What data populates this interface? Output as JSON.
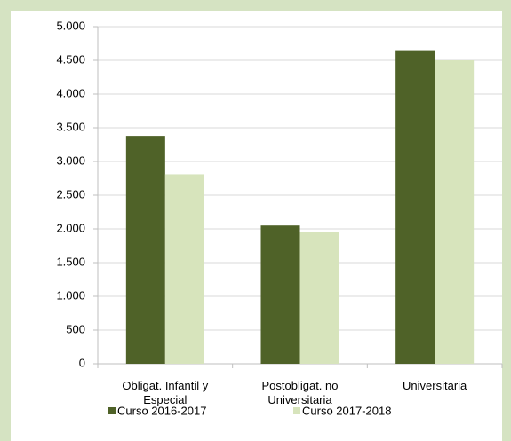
{
  "chart_data": {
    "type": "bar",
    "categories": [
      "Obligat. Infantil y Especial",
      "Postobligat. no Universitaria",
      "Universitaria"
    ],
    "series": [
      {
        "name": "Curso 2016-2017",
        "color": "#4f6228",
        "values": [
          3380,
          2050,
          4650
        ]
      },
      {
        "name": "Curso 2017-2018",
        "color": "#d7e4bc",
        "values": [
          2810,
          1950,
          4500
        ]
      }
    ],
    "ylim": [
      0,
      5000
    ],
    "yticks": [
      0,
      500,
      {
        "value": 1000,
        "label": "1.000"
      },
      {
        "value": 1500,
        "label": "1.500"
      },
      {
        "value": 2000,
        "label": "2.000"
      },
      {
        "value": 2500,
        "label": "2.500"
      },
      {
        "value": 3000,
        "label": "3.000"
      },
      {
        "value": 3500,
        "label": "3.500"
      },
      {
        "value": 4000,
        "label": "4.000"
      },
      {
        "value": 4500,
        "label": "4.500"
      },
      {
        "value": 5000,
        "label": "5.000"
      }
    ],
    "grid": true
  }
}
